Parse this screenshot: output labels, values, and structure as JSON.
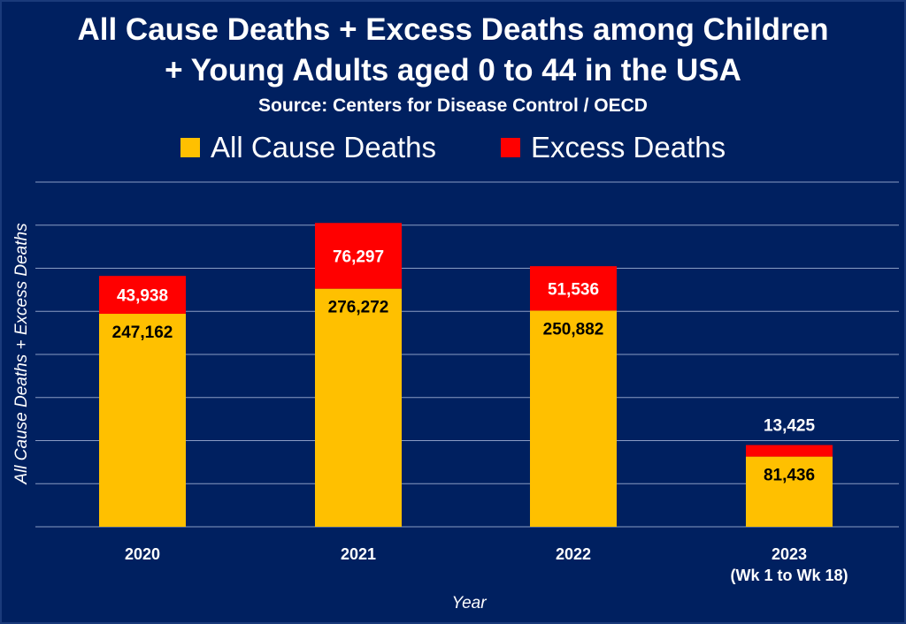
{
  "title_line1": "All Cause Deaths + Excess Deaths among Children",
  "title_line2": "+ Young Adults aged 0 to 44 in the USA",
  "subtitle": "Source: Centers for Disease Control / OECD",
  "legend": [
    {
      "label": "All Cause Deaths",
      "color": "#FFC000"
    },
    {
      "label": "Excess Deaths",
      "color": "#FF0000"
    }
  ],
  "chart_data": {
    "type": "bar",
    "stacked": true,
    "categories": [
      "2020",
      "2021",
      "2022",
      "2023"
    ],
    "category_sublabels": [
      "",
      "",
      "",
      "(Wk 1 to Wk 18)"
    ],
    "series": [
      {
        "name": "All Cause Deaths",
        "color": "#FFC000",
        "values": [
          247162,
          276272,
          250882,
          81436
        ],
        "labels": [
          "247,162",
          "276,272",
          "250,882",
          "81,436"
        ]
      },
      {
        "name": "Excess Deaths",
        "color": "#FF0000",
        "values": [
          43938,
          76297,
          51536,
          13425
        ],
        "labels": [
          "43,938",
          "76,297",
          "51,536",
          "13,425"
        ]
      }
    ],
    "xlabel": "Year",
    "ylabel": "All Cause Deaths + Excess Deaths",
    "ylim": [
      0,
      400000
    ],
    "grid": true,
    "legend_position": "top"
  }
}
